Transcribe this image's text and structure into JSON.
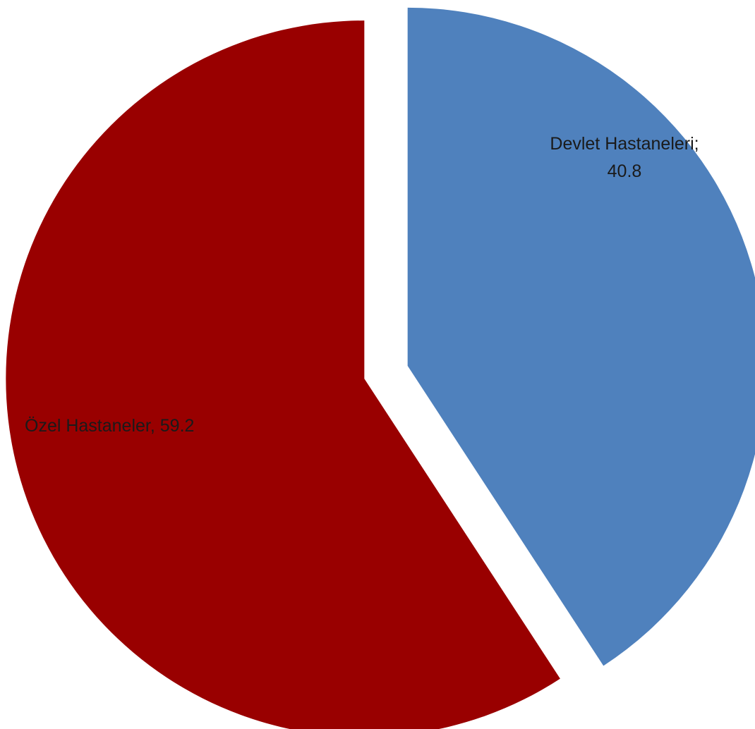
{
  "chart_data": {
    "type": "pie",
    "title": "",
    "slices": [
      {
        "name": "Devlet Hastaneleri",
        "value": 40.8,
        "color": "#4f81bd",
        "label_lines": [
          "Devlet Hastaneleri;",
          "40.8"
        ]
      },
      {
        "name": "Özel Hastaneler",
        "value": 59.2,
        "color": "#990000",
        "label_lines": [
          "Özel Hastaneler, 59.2"
        ]
      }
    ],
    "start_angle": "12 o'clock",
    "direction": "clockwise",
    "exploded": true,
    "legend": "none"
  }
}
